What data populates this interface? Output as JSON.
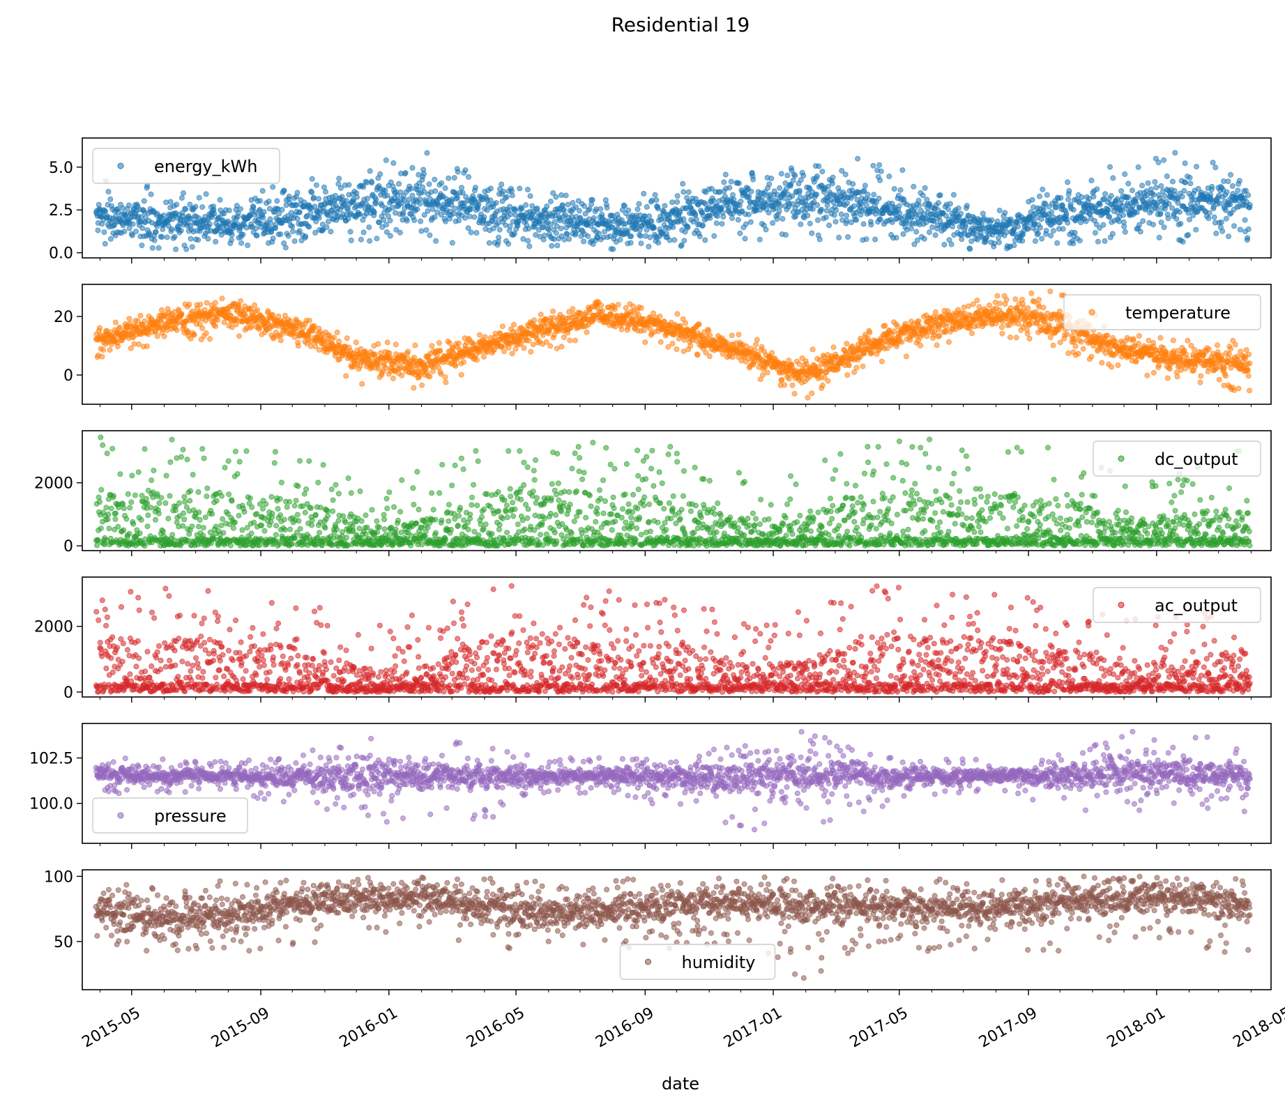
{
  "figure": {
    "title": "Residential 19",
    "xlabel": "date"
  },
  "chart_data": {
    "type": "scatter",
    "title": "Residential 19",
    "xlabel": "date",
    "x_range": [
      "2015-03-15",
      "2018-04-20"
    ],
    "x_ticks": [
      "2015-05",
      "2015-09",
      "2016-01",
      "2016-05",
      "2016-09",
      "2017-01",
      "2017-05",
      "2017-09",
      "2018-01",
      "2018-05"
    ],
    "grid": false,
    "series": [
      {
        "name": "energy_kWh",
        "color": "#1f77b4",
        "legend_loc": "upper left",
        "ylim": [
          -0.3,
          6.7
        ],
        "yticks": [
          0.0,
          2.5,
          5.0
        ],
        "ytick_labels": [
          "0.0",
          "2.5",
          "5.0"
        ],
        "monthly": [
          [
            "2015-03",
            0.3,
            1.3,
            2.9,
            4.4
          ],
          [
            "2015-05",
            0.2,
            1.0,
            2.6,
            3.8
          ],
          [
            "2015-07",
            0.2,
            0.9,
            2.4,
            3.4
          ],
          [
            "2015-09",
            0.3,
            1.3,
            3.0,
            4.2
          ],
          [
            "2015-11",
            0.6,
            1.8,
            3.8,
            5.0
          ],
          [
            "2016-01",
            0.7,
            2.1,
            4.2,
            6.0
          ],
          [
            "2016-03",
            0.4,
            1.6,
            3.4,
            4.5
          ],
          [
            "2016-05",
            0.2,
            1.0,
            2.5,
            3.6
          ],
          [
            "2016-07",
            0.2,
            0.8,
            2.3,
            3.3
          ],
          [
            "2016-09",
            0.3,
            1.2,
            3.0,
            4.0
          ],
          [
            "2016-11",
            0.7,
            2.0,
            3.9,
            5.0
          ],
          [
            "2017-01",
            0.8,
            2.3,
            4.2,
            5.3
          ],
          [
            "2017-03",
            0.5,
            1.8,
            3.6,
            5.8
          ],
          [
            "2017-05",
            0.3,
            1.4,
            3.0,
            4.2
          ],
          [
            "2017-07",
            0.1,
            0.8,
            2.0,
            2.9
          ],
          [
            "2017-09",
            0.3,
            1.3,
            3.0,
            4.0
          ],
          [
            "2017-11",
            0.7,
            2.0,
            3.8,
            5.5
          ],
          [
            "2018-01",
            0.6,
            2.0,
            4.0,
            6.0
          ],
          [
            "2018-03",
            0.3,
            2.0,
            3.8,
            5.0
          ]
        ]
      },
      {
        "name": "temperature",
        "color": "#ff7f0e",
        "legend_loc": "upper right",
        "ylim": [
          -10,
          31
        ],
        "yticks": [
          0,
          20
        ],
        "ytick_labels": [
          "0",
          "20"
        ],
        "monthly": [
          [
            "2015-03",
            6,
            10,
            14,
            17
          ],
          [
            "2015-05",
            10,
            15,
            20,
            23
          ],
          [
            "2015-07",
            13,
            18,
            24,
            27
          ],
          [
            "2015-09",
            10,
            14,
            19,
            22
          ],
          [
            "2015-11",
            -3,
            3,
            9,
            13
          ],
          [
            "2016-01",
            -6,
            0,
            6,
            10
          ],
          [
            "2016-03",
            2,
            7,
            12,
            15
          ],
          [
            "2016-05",
            8,
            13,
            19,
            22
          ],
          [
            "2016-07",
            12,
            17,
            23,
            26
          ],
          [
            "2016-09",
            8,
            13,
            18,
            21
          ],
          [
            "2016-11",
            0,
            5,
            10,
            14
          ],
          [
            "2017-01",
            -9,
            -3,
            3,
            8
          ],
          [
            "2017-03",
            2,
            7,
            12,
            15
          ],
          [
            "2017-05",
            9,
            14,
            20,
            23
          ],
          [
            "2017-07",
            13,
            18,
            24,
            27
          ],
          [
            "2017-09",
            8,
            14,
            21,
            29
          ],
          [
            "2017-11",
            1,
            6,
            11,
            14
          ],
          [
            "2018-01",
            -3,
            2,
            8,
            12
          ],
          [
            "2018-03",
            -6,
            1,
            7,
            12
          ]
        ]
      },
      {
        "name": "dc_output",
        "color": "#2ca02c",
        "legend_loc": "upper right",
        "ylim": [
          -150,
          3650
        ],
        "yticks": [
          0,
          2000
        ],
        "ytick_labels": [
          "0",
          "2000"
        ],
        "monthly": [
          [
            "2015-03",
            0,
            0,
            1800,
            3450
          ],
          [
            "2015-05",
            0,
            0,
            1800,
            3400
          ],
          [
            "2015-07",
            0,
            0,
            1700,
            3200
          ],
          [
            "2015-09",
            0,
            0,
            1500,
            3150
          ],
          [
            "2015-11",
            0,
            0,
            900,
            2200
          ],
          [
            "2016-01",
            0,
            0,
            800,
            2500
          ],
          [
            "2016-03",
            0,
            0,
            1700,
            3200
          ],
          [
            "2016-05",
            0,
            0,
            1800,
            3450
          ],
          [
            "2016-07",
            0,
            0,
            1700,
            3250
          ],
          [
            "2016-09",
            0,
            0,
            1600,
            3150
          ],
          [
            "2016-11",
            0,
            0,
            900,
            2400
          ],
          [
            "2017-01",
            0,
            0,
            1000,
            2600
          ],
          [
            "2017-03",
            0,
            0,
            1800,
            3300
          ],
          [
            "2017-05",
            0,
            0,
            1800,
            3450
          ],
          [
            "2017-07",
            0,
            0,
            1700,
            3200
          ],
          [
            "2017-09",
            0,
            0,
            1500,
            3100
          ],
          [
            "2017-11",
            0,
            0,
            900,
            2300
          ],
          [
            "2018-01",
            0,
            0,
            1000,
            2600
          ],
          [
            "2018-03",
            0,
            0,
            1500,
            3350
          ]
        ]
      },
      {
        "name": "ac_output",
        "color": "#d62728",
        "legend_loc": "upper right",
        "ylim": [
          -150,
          3500
        ],
        "yticks": [
          0,
          2000
        ],
        "ytick_labels": [
          "0",
          "2000"
        ],
        "monthly": [
          [
            "2015-03",
            0,
            0,
            1700,
            3300
          ],
          [
            "2015-05",
            0,
            0,
            1700,
            3300
          ],
          [
            "2015-07",
            0,
            0,
            1600,
            3050
          ],
          [
            "2015-09",
            0,
            0,
            1400,
            3000
          ],
          [
            "2015-11",
            0,
            0,
            850,
            2100
          ],
          [
            "2016-01",
            0,
            0,
            750,
            2400
          ],
          [
            "2016-03",
            0,
            0,
            1600,
            3200
          ],
          [
            "2016-05",
            0,
            0,
            1700,
            3350
          ],
          [
            "2016-07",
            0,
            0,
            1600,
            3100
          ],
          [
            "2016-09",
            0,
            0,
            1500,
            3000
          ],
          [
            "2016-11",
            0,
            0,
            850,
            2300
          ],
          [
            "2017-01",
            0,
            0,
            950,
            2500
          ],
          [
            "2017-03",
            0,
            0,
            1700,
            3200
          ],
          [
            "2017-05",
            0,
            0,
            1700,
            3350
          ],
          [
            "2017-07",
            0,
            0,
            1600,
            3050
          ],
          [
            "2017-09",
            0,
            0,
            1400,
            2950
          ],
          [
            "2017-11",
            0,
            0,
            850,
            2200
          ],
          [
            "2018-01",
            0,
            0,
            950,
            2500
          ],
          [
            "2018-03",
            0,
            0,
            1450,
            3200
          ]
        ]
      },
      {
        "name": "pressure",
        "color": "#9467bd",
        "legend_loc": "lower left",
        "ylim": [
          97.8,
          104.4
        ],
        "yticks": [
          100.0,
          102.5
        ],
        "ytick_labels": [
          "100.0",
          "102.5"
        ],
        "monthly": [
          [
            "2015-03",
            100.5,
            101.3,
            102.1,
            103.0
          ],
          [
            "2015-05",
            100.6,
            101.2,
            101.8,
            102.5
          ],
          [
            "2015-07",
            100.6,
            101.2,
            101.8,
            102.3
          ],
          [
            "2015-09",
            99.8,
            101.0,
            101.9,
            102.6
          ],
          [
            "2015-11",
            98.5,
            100.8,
            102.3,
            103.7
          ],
          [
            "2016-01",
            98.8,
            100.9,
            102.2,
            103.6
          ],
          [
            "2016-03",
            98.3,
            100.9,
            102.0,
            103.2
          ],
          [
            "2016-05",
            100.4,
            101.1,
            101.8,
            102.6
          ],
          [
            "2016-07",
            100.6,
            101.2,
            101.8,
            102.5
          ],
          [
            "2016-09",
            99.5,
            100.9,
            101.8,
            102.5
          ],
          [
            "2016-11",
            98.5,
            100.6,
            102.2,
            103.5
          ],
          [
            "2017-01",
            98.7,
            100.6,
            102.4,
            104.0
          ],
          [
            "2017-03",
            99.0,
            100.9,
            102.0,
            103.0
          ],
          [
            "2017-05",
            100.3,
            101.1,
            101.8,
            102.6
          ],
          [
            "2017-07",
            100.7,
            101.3,
            101.8,
            102.4
          ],
          [
            "2017-09",
            99.6,
            101.0,
            101.9,
            102.8
          ],
          [
            "2017-11",
            99.5,
            101.0,
            102.4,
            104.0
          ],
          [
            "2018-01",
            99.8,
            101.1,
            102.4,
            104.1
          ],
          [
            "2018-03",
            99.5,
            100.9,
            102.0,
            103.3
          ]
        ]
      },
      {
        "name": "humidity",
        "color": "#8c564b",
        "legend_loc": "lower center",
        "ylim": [
          13,
          105
        ],
        "yticks": [
          50,
          100
        ],
        "ytick_labels": [
          "50",
          "100"
        ],
        "monthly": [
          [
            "2015-03",
            32,
            62,
            82,
            98
          ],
          [
            "2015-05",
            40,
            58,
            78,
            96
          ],
          [
            "2015-07",
            40,
            60,
            80,
            97
          ],
          [
            "2015-09",
            45,
            70,
            88,
            99
          ],
          [
            "2015-11",
            50,
            72,
            90,
            100
          ],
          [
            "2016-01",
            55,
            75,
            92,
            100
          ],
          [
            "2016-03",
            45,
            68,
            86,
            99
          ],
          [
            "2016-05",
            40,
            62,
            82,
            98
          ],
          [
            "2016-07",
            42,
            64,
            84,
            98
          ],
          [
            "2016-09",
            45,
            70,
            88,
            99
          ],
          [
            "2016-11",
            48,
            72,
            90,
            100
          ],
          [
            "2017-01",
            20,
            68,
            88,
            100
          ],
          [
            "2017-03",
            45,
            68,
            86,
            99
          ],
          [
            "2017-05",
            42,
            64,
            84,
            98
          ],
          [
            "2017-07",
            45,
            66,
            84,
            98
          ],
          [
            "2017-09",
            42,
            70,
            88,
            100
          ],
          [
            "2017-11",
            48,
            74,
            92,
            100
          ],
          [
            "2018-01",
            50,
            76,
            92,
            100
          ],
          [
            "2018-03",
            33,
            66,
            86,
            98
          ]
        ]
      }
    ]
  }
}
